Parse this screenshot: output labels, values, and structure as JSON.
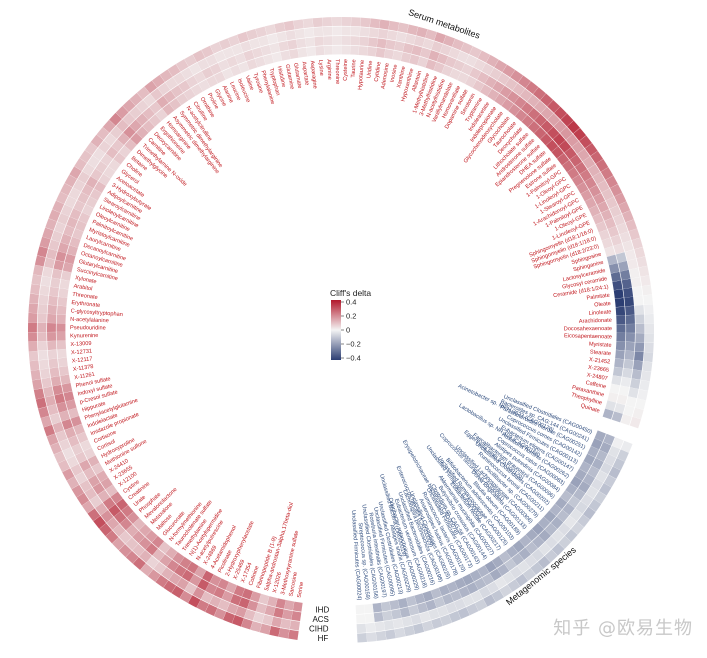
{
  "chart_data": {
    "type": "heatmap",
    "layout": "circular",
    "legend": {
      "title": "Cliff's delta",
      "ticks": [
        "0.4",
        "0.2",
        "0",
        "−0.2",
        "−0.4"
      ],
      "range": [
        -0.4,
        0.4
      ],
      "placement": "center",
      "colors": {
        "positive": "#b2182b",
        "zero": "#f4f4f4",
        "negative": "#2c3e73"
      }
    },
    "ring_labels": [
      "HF",
      "CIHD",
      "ACS",
      "IHD"
    ],
    "sectors": [
      {
        "name": "Serum metabolites",
        "label_color": "#c0151b",
        "features": [
          "Serine",
          "Sarcosine",
          "3-Methoxytyramine sulfate",
          "X-12026",
          "5alpha-androstan-3alpha,17beta-diol",
          "Fibrinopeptide B (1-9)",
          "Cotinine",
          "X-17354",
          "X-25469",
          "2-Hydroxyphenylacetate",
          "Picolinate",
          "4-Acetamidophenol",
          "X-24869",
          "N-acetylputrescine",
          "N(1)-Acetylspermidine",
          "Trimethylamine",
          "Taurocholenate sulfate",
          "N-formylmethionine",
          "Glucuronate",
          "Maltose",
          "Metaxalone",
          "Mevalonolactone",
          "Phosphate",
          "Urate",
          "Creatinine",
          "Cystine",
          "X-12100",
          "X-23655",
          "X-24410",
          "Methionine sulfone",
          "Hydroxyproline",
          "Cortisol",
          "Cortisone",
          "Imidazole propionate",
          "Indolelactate",
          "Phenylacetylglutamine",
          "Hippurate",
          "p-Cresol sulfate",
          "Indoxyl sulfate",
          "Phenol sulfate",
          "X-11261",
          "X-11378",
          "X-12117",
          "X-12731",
          "X-13009",
          "Kynurenine",
          "Pseudouridine",
          "N-acetylalanine",
          "C-glycosyltryptophan",
          "Erythronate",
          "Threonate",
          "Arabitol",
          "Xylonate",
          "Succinylcarnitine",
          "Glutarylcarnitine",
          "Octanoylcarnitine",
          "Decanoylcarnitine",
          "Laurylcarnitine",
          "Myristoylcarnitine",
          "Palmitoylcarnitine",
          "Oleoylcarnitine",
          "Linoleoylcarnitine",
          "Stearoylcarnitine",
          "Adipoylcarnitine",
          "3-Hydroxybutyrate",
          "Acetoacetate",
          "Glycerol",
          "Choline",
          "Betaine",
          "Dimethylglycine",
          "Trimethylamine N-oxide",
          "Carnitine",
          "Deoxycarnitine",
          "Ergothioneine",
          "Homoarginine",
          "Asymmetric dimethylarginine",
          "Symmetric dimethylarginine",
          "N-acetylcitrulline",
          "Citrulline",
          "Ornithine",
          "Proline",
          "Glycine",
          "Alanine",
          "Leucine",
          "Isoleucine",
          "Valine",
          "Tyrosine",
          "Phenylalanine",
          "Tryptophan",
          "Histidine",
          "Glutamine",
          "Glutamate",
          "Aspartate",
          "Asparagine",
          "Lysine",
          "Arginine",
          "Threonine",
          "Cysteine",
          "Taurine",
          "Hypotaurine",
          "Uridine",
          "Cytidine",
          "Adenosine",
          "Inosine",
          "Xanthine",
          "Hypoxanthine",
          "Allantoin",
          "1-Methylhistidine",
          "3-Methylhistidine",
          "N-acetylhistidine",
          "Vanillylmandelate",
          "Homovanillate",
          "Dopamine sulfate",
          "Serotonin",
          "Tryptamine",
          "Indoleacetate",
          "Indolepropionate",
          "Glycochenodeoxycholate",
          "Glycocholate",
          "Taurocholate",
          "Deoxycholate",
          "Lithocholate sulfate",
          "Androsterone sulfate",
          "Epiandrosterone sulfate",
          "DHEA sulfate",
          "Pregnenolone sulfate",
          "Estrone sulfate",
          "1-Palmitoyl-GPC",
          "1-Oleoyl-GPC",
          "1-Linoleoyl-GPC",
          "1-Stearoyl-GPC",
          "1-Arachidonoyl-GPC",
          "1-Palmitoyl-GPE",
          "1-Oleoyl-GPE",
          "1-Linoleoyl-GPE",
          "Sphingomyelin (d18:1/16:0)",
          "Sphingomyelin (d18:1/18:0)",
          "Sphingomyelin (d18:2/23:0)",
          "Sphingosine",
          "Sphinganine",
          "Lactosylceramide",
          "Glycosyl ceramide",
          "Ceramide (d18:1/24:1)",
          "Palmitate",
          "Oleate",
          "Linoleate",
          "Arachidonate",
          "Docosahexaenoate",
          "Eicosapentaenoate",
          "Myristate",
          "Stearate",
          "X-21452",
          "X-23665",
          "X-24807",
          "Caffeine",
          "Paraxanthine",
          "Theophylline",
          "Quinate"
        ]
      },
      {
        "name": "Metagenomic species",
        "label_color": "#2c4a7c",
        "features": [
          "Unclassified Clostridiales (CAG00450)",
          "Bacteroides sp. CAG:144 (CAG00241)",
          "Parabacteroides merdae (CAG00251)",
          "Coprococcus comes (CAG00142)",
          "Unclassified Firmicutes (CAG00113)",
          "Eubacterium eligens (CAG00147)",
          "Roseburia hominis (CAG00262)",
          "Coprococcus catus (CAG00083)",
          "Alistipes putredinis (CAG00084)",
          "Faecalibacterium prausnitzii (CAG00096)",
          "Unclassified Clostridiales (CAG00202)",
          "Ruminococcus bromii (CAG00211)",
          "Oscillibacter sp. (CAG00279)",
          "Unclassified Lachnospiraceae (CAG00306)",
          "Dorea longicatena (CAG00133)",
          "Blautia obeum (CAG00189)",
          "Bifidobacterium adolescentis (CAG00103)",
          "Unclassified Ruminococcaceae (CAG00125)",
          "Eubacterium rectale (CAG00217)",
          "Akkermansia muciniphila (CAG00227)",
          "Butyrivibrio crossotus (CAG00144)",
          "Clostridium sp. CAG:58 (CAG00163)",
          "Unclassified Firmicutes (CAG00173)",
          "Ruminococcus lactaris (CAG00120)",
          "Anaerostipes hadrus (CAG00178)",
          "Unclassified Clostridiales (CAG00225)",
          "Lachnospira pectinoschiza (CAG00198)",
          "Unclassified Bacteroidales (CAG00216)",
          "Eubacterium ventriosum (CAG00218)",
          "Odoribacter splanchnicus (CAG00229)",
          "Alistipes shahii (CAG00229)",
          "Unclassified Clostridiales (CAG00213)",
          "Unclassified Firmicutes (CAG00095)",
          "Roseburia intestinalis (CAG00197)",
          "Unclassified Clostridiales (CAG00156)",
          "Streptococcus sp. (CAG00159)",
          "Unclassified Firmicutes (CAG00024)"
        ]
      }
    ],
    "outer_labels": [
      "Acinetobacter sp. NIPH 3623 (CAG00170)",
      "Lactobacillus sp. NR 109 (CAG00168)",
      "Eggerthella lenta (CAG00120)",
      "Coprococcus secundus (CAG00091)",
      "Unclassified Firmicutes (CAG00002)",
      "Erysipelotrichaceae bacterium (CAG00078)",
      "Enterococcus faecalis (CAG00009)",
      "Unclassified Bacteria (CAG00019)"
    ],
    "values": {
      "HF": [
        0.22,
        0.18,
        0.25,
        0.15,
        0.12,
        0.2,
        0.28,
        0.26,
        0.18,
        0.24,
        0.22,
        0.3,
        0.19,
        0.27,
        0.25,
        0.22,
        0.17,
        0.13,
        0.24,
        0.2,
        0.18,
        0.15,
        0.22,
        0.26,
        0.3,
        0.24,
        0.14,
        0.19,
        0.17,
        0.12,
        0.16,
        0.1,
        0.09,
        0.12,
        0.15,
        0.22,
        0.14,
        0.2,
        0.24,
        0.21,
        0.15,
        0.12,
        0.1,
        0.08,
        0.13,
        0.19,
        0.22,
        0.16,
        0.14,
        0.12,
        0.1,
        0.09,
        0.11,
        0.18,
        0.2,
        0.16,
        0.14,
        0.12,
        0.13,
        0.12,
        0.1,
        0.11,
        0.12,
        0.14,
        0.1,
        0.09,
        0.08,
        0.12,
        0.1,
        0.14,
        0.2,
        0.16,
        0.14,
        0.12,
        0.1,
        0.15,
        0.13,
        0.11,
        0.1,
        0.08,
        0.07,
        0.09,
        0.08,
        0.06,
        0.07,
        0.06,
        0.08,
        0.07,
        0.06,
        0.05,
        0.07,
        0.08,
        0.06,
        0.05,
        0.07,
        0.06,
        0.05,
        0.06,
        0.07,
        0.08,
        0.1,
        0.12,
        0.1,
        0.09,
        0.11,
        0.12,
        0.1,
        0.14,
        0.12,
        0.1,
        0.09,
        0.08,
        0.1,
        0.12,
        0.14,
        0.16,
        0.18,
        0.2,
        0.22,
        0.24,
        0.26,
        0.28,
        0.3,
        0.32,
        0.34,
        0.33,
        0.3,
        0.28,
        0.26,
        0.24,
        0.22,
        0.2,
        0.18,
        0.16,
        0.14,
        0.12,
        0.1,
        0.08,
        0.06,
        0.05,
        0.04,
        0.03,
        0.02,
        0.01,
        0.0,
        -0.01,
        -0.02,
        -0.03,
        -0.04,
        -0.05,
        -0.06,
        -0.04,
        -0.03,
        -0.02,
        -0.01,
        0.0,
        0.01,
        0.02,
        -0.02,
        -0.08,
        -0.1,
        -0.12,
        -0.09,
        -0.11,
        -0.08,
        -0.1,
        -0.12,
        -0.09,
        -0.07,
        -0.1,
        -0.08,
        -0.11,
        -0.09,
        -0.12,
        -0.1,
        -0.08,
        -0.11,
        -0.09,
        -0.07,
        -0.1,
        -0.12,
        -0.08,
        -0.09,
        -0.11,
        -0.1,
        -0.08,
        -0.09,
        -0.07,
        -0.1,
        -0.08,
        -0.06,
        -0.09,
        -0.07,
        -0.05,
        -0.08
      ],
      "CIHD": [
        0.12,
        0.1,
        0.14,
        0.08,
        0.06,
        0.1,
        0.16,
        0.14,
        0.1,
        0.12,
        0.1,
        0.18,
        0.09,
        0.15,
        0.14,
        0.12,
        0.08,
        0.06,
        0.12,
        0.1,
        0.09,
        0.08,
        0.11,
        0.14,
        0.18,
        0.13,
        0.07,
        0.1,
        0.09,
        0.06,
        0.08,
        0.05,
        0.04,
        0.06,
        0.08,
        0.12,
        0.07,
        0.1,
        0.13,
        0.11,
        0.08,
        0.06,
        0.05,
        0.04,
        0.06,
        0.1,
        0.12,
        0.08,
        0.07,
        0.06,
        0.05,
        0.04,
        0.05,
        0.09,
        0.1,
        0.08,
        0.07,
        0.06,
        0.07,
        0.06,
        0.05,
        0.05,
        0.06,
        0.07,
        0.05,
        0.04,
        0.04,
        0.06,
        0.05,
        0.07,
        0.1,
        0.08,
        0.07,
        0.06,
        0.05,
        0.08,
        0.06,
        0.05,
        0.05,
        0.04,
        0.03,
        0.04,
        0.04,
        0.03,
        0.03,
        0.03,
        0.04,
        0.03,
        0.03,
        0.02,
        0.03,
        0.04,
        0.03,
        0.02,
        0.03,
        0.03,
        0.02,
        0.03,
        0.03,
        0.04,
        0.05,
        0.06,
        0.05,
        0.04,
        0.05,
        0.06,
        0.05,
        0.07,
        0.06,
        0.05,
        0.04,
        0.04,
        0.05,
        0.06,
        0.07,
        0.08,
        0.09,
        0.1,
        0.11,
        0.12,
        0.13,
        0.14,
        0.15,
        0.16,
        0.17,
        0.16,
        0.15,
        0.14,
        0.13,
        0.12,
        0.11,
        0.1,
        0.09,
        0.08,
        0.07,
        0.06,
        0.05,
        0.04,
        0.03,
        0.02,
        0.02,
        0.01,
        0.01,
        0.0,
        0.0,
        -0.04,
        -0.08,
        -0.12,
        -0.16,
        -0.2,
        -0.24,
        -0.18,
        -0.12,
        -0.08,
        -0.04,
        0.0,
        0.0,
        0.01,
        -0.01,
        -0.04,
        -0.05,
        -0.06,
        -0.04,
        -0.05,
        -0.04,
        -0.05,
        -0.06,
        -0.04,
        -0.03,
        -0.05,
        -0.04,
        -0.05,
        -0.04,
        -0.06,
        -0.05,
        -0.04,
        -0.05,
        -0.04,
        -0.03,
        -0.05,
        -0.06,
        -0.04,
        -0.04,
        -0.05,
        -0.05,
        -0.04,
        -0.04,
        -0.03,
        -0.05,
        -0.04,
        -0.03,
        -0.04,
        -0.03,
        -0.02,
        -0.04
      ],
      "ACS": [
        0.2,
        0.16,
        0.22,
        0.14,
        0.1,
        0.18,
        0.26,
        0.24,
        0.16,
        0.22,
        0.2,
        0.28,
        0.17,
        0.25,
        0.23,
        0.2,
        0.15,
        0.11,
        0.22,
        0.18,
        0.16,
        0.13,
        0.2,
        0.24,
        0.28,
        0.22,
        0.12,
        0.17,
        0.15,
        0.1,
        0.14,
        0.08,
        0.07,
        0.1,
        0.13,
        0.2,
        0.12,
        0.18,
        0.22,
        0.19,
        0.13,
        0.1,
        0.08,
        0.06,
        0.11,
        0.17,
        0.2,
        0.14,
        0.12,
        0.1,
        0.08,
        0.07,
        0.09,
        0.16,
        0.18,
        0.14,
        0.12,
        0.1,
        0.11,
        0.1,
        0.08,
        0.09,
        0.1,
        0.12,
        0.08,
        0.07,
        0.06,
        0.1,
        0.08,
        0.12,
        0.18,
        0.14,
        0.12,
        0.1,
        0.08,
        0.13,
        0.11,
        0.09,
        0.08,
        0.06,
        0.05,
        0.07,
        0.06,
        0.04,
        0.05,
        0.04,
        0.06,
        0.05,
        0.04,
        0.03,
        0.05,
        0.06,
        0.04,
        0.03,
        0.05,
        0.04,
        0.03,
        0.04,
        0.05,
        0.06,
        0.08,
        0.1,
        0.08,
        0.07,
        0.09,
        0.1,
        0.08,
        0.12,
        0.1,
        0.08,
        0.07,
        0.06,
        0.08,
        0.1,
        0.12,
        0.14,
        0.16,
        0.18,
        0.2,
        0.22,
        0.24,
        0.26,
        0.28,
        0.3,
        0.32,
        0.31,
        0.28,
        0.26,
        0.24,
        0.22,
        0.2,
        0.18,
        0.16,
        0.14,
        0.12,
        0.1,
        0.08,
        0.06,
        0.04,
        -0.1,
        -0.18,
        -0.26,
        -0.32,
        -0.36,
        -0.38,
        -0.34,
        -0.3,
        -0.26,
        -0.22,
        -0.18,
        -0.14,
        -0.1,
        -0.06,
        -0.02,
        0.0,
        0.01,
        -0.03,
        -0.12,
        -0.14,
        -0.16,
        -0.13,
        -0.15,
        -0.12,
        -0.14,
        -0.16,
        -0.13,
        -0.1,
        -0.14,
        -0.12,
        -0.15,
        -0.13,
        -0.16,
        -0.14,
        -0.12,
        -0.15,
        -0.13,
        -0.1,
        -0.14,
        -0.16,
        -0.12,
        -0.13,
        -0.15,
        -0.14,
        -0.12,
        -0.13,
        -0.1,
        -0.14,
        -0.12,
        -0.09,
        -0.13,
        -0.1,
        -0.08,
        -0.12
      ],
      "IHD": [
        0.18,
        0.14,
        0.2,
        0.12,
        0.08,
        0.16,
        0.24,
        0.22,
        0.14,
        0.2,
        0.18,
        0.26,
        0.15,
        0.23,
        0.21,
        0.18,
        0.13,
        0.09,
        0.2,
        0.16,
        0.14,
        0.11,
        0.18,
        0.22,
        0.26,
        0.2,
        0.1,
        0.15,
        0.13,
        0.08,
        0.12,
        0.06,
        0.05,
        0.08,
        0.11,
        0.18,
        0.1,
        0.16,
        0.2,
        0.17,
        0.11,
        0.08,
        0.06,
        0.05,
        0.09,
        0.15,
        0.18,
        0.12,
        0.1,
        0.08,
        0.06,
        0.05,
        0.07,
        0.14,
        0.16,
        0.12,
        0.1,
        0.08,
        0.09,
        0.08,
        0.06,
        0.07,
        0.08,
        0.1,
        0.06,
        0.05,
        0.05,
        0.08,
        0.06,
        0.1,
        0.16,
        0.12,
        0.1,
        0.08,
        0.06,
        0.11,
        0.09,
        0.07,
        0.06,
        0.05,
        0.04,
        0.05,
        0.05,
        0.03,
        0.04,
        0.03,
        0.05,
        0.04,
        0.03,
        0.02,
        0.04,
        0.05,
        0.03,
        0.02,
        0.04,
        0.03,
        0.02,
        0.03,
        0.04,
        0.05,
        0.06,
        0.08,
        0.06,
        0.05,
        0.07,
        0.08,
        0.06,
        0.1,
        0.08,
        0.06,
        0.05,
        0.05,
        0.06,
        0.08,
        0.1,
        0.12,
        0.14,
        0.16,
        0.18,
        0.2,
        0.22,
        0.24,
        0.26,
        0.28,
        0.3,
        0.29,
        0.26,
        0.24,
        0.22,
        0.2,
        0.18,
        0.16,
        0.14,
        0.12,
        0.1,
        0.08,
        0.06,
        0.05,
        0.03,
        -0.14,
        -0.22,
        -0.3,
        -0.36,
        -0.4,
        -0.42,
        -0.38,
        -0.34,
        -0.3,
        -0.26,
        -0.22,
        -0.18,
        -0.14,
        -0.1,
        -0.04,
        0.0,
        0.01,
        -0.04,
        -0.14,
        -0.16,
        -0.18,
        -0.15,
        -0.17,
        -0.14,
        -0.16,
        -0.18,
        -0.15,
        -0.12,
        -0.16,
        -0.14,
        -0.17,
        -0.15,
        -0.18,
        -0.16,
        -0.14,
        -0.17,
        -0.15,
        -0.12,
        -0.16,
        -0.18,
        -0.14,
        -0.15,
        -0.17,
        -0.16,
        -0.14,
        -0.15,
        -0.12,
        -0.16,
        -0.14,
        -0.11,
        -0.15,
        -0.12,
        -0.1,
        -0.14
      ]
    }
  },
  "watermark": "知乎 @欧易生物"
}
